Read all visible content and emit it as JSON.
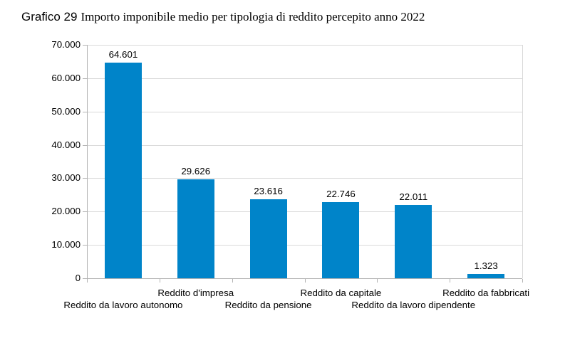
{
  "title": {
    "prefix": "Grafico 29",
    "text": "Importo imponibile medio per tipologia di reddito percepito anno 2022"
  },
  "chart_data": {
    "type": "bar",
    "title": "Grafico 29 Importo imponibile medio per tipologia di reddito percepito anno 2022",
    "categories": [
      "Reddito da lavoro autonomo",
      "Reddito d'impresa",
      "Reddito da pensione",
      "Reddito da capitale",
      "Reddito da lavoro dipendente",
      "Reddito da fabbricati"
    ],
    "values": [
      64601,
      29626,
      23616,
      22746,
      22011,
      1323
    ],
    "data_labels": [
      "64.601",
      "29.626",
      "23.616",
      "22.746",
      "22.011",
      "1.323"
    ],
    "xlabel": "",
    "ylabel": "",
    "ylim": [
      0,
      70000
    ],
    "y_ticks": [
      {
        "value": 70000,
        "label": "70.000"
      },
      {
        "value": 60000,
        "label": "60.000"
      },
      {
        "value": 50000,
        "label": "50.000"
      },
      {
        "value": 40000,
        "label": "40.000"
      },
      {
        "value": 30000,
        "label": "30.000"
      },
      {
        "value": 20000,
        "label": "20.000"
      },
      {
        "value": 10000,
        "label": "10.000"
      },
      {
        "value": 0,
        "label": "0"
      }
    ],
    "grid": true,
    "legend": false,
    "label_rows": "staggered",
    "bar_color": "#0084C9",
    "grid_color": "#D9D9D9",
    "axis_color": "#B3B3B3",
    "text_color": "#000000"
  }
}
